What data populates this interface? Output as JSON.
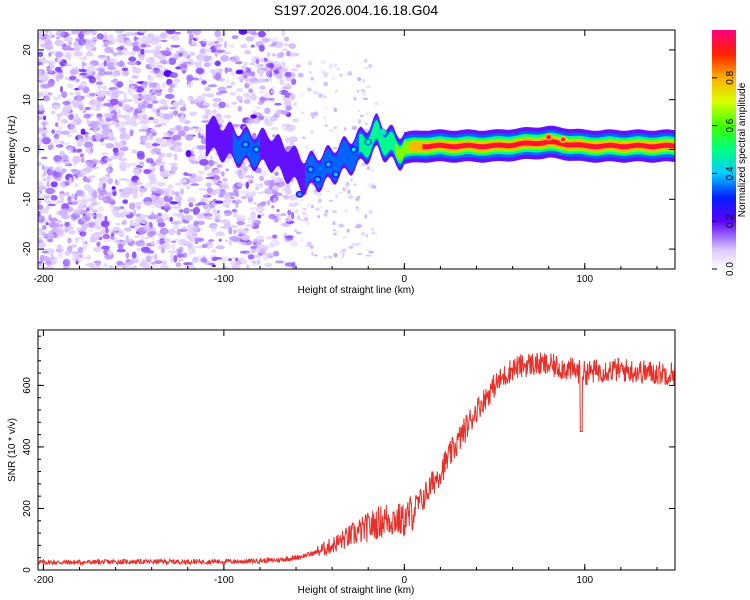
{
  "figure_title": "S197.2026.004.16.18.G04",
  "colors": {
    "snr_line": "#e8302a",
    "background_point": "#6a00ff",
    "frame": "#000000"
  },
  "chart_data": [
    {
      "type": "heatmap",
      "name": "spectrogram",
      "xlabel": "Height of straight line (km)",
      "ylabel": "Frequency (Hz)",
      "xlim": [
        -203,
        150
      ],
      "ylim": [
        -24,
        24
      ],
      "xticks": [
        -200,
        -100,
        0,
        100
      ],
      "yticks": [
        -20,
        -10,
        0,
        10,
        20
      ],
      "colorbar": {
        "label": "Normalized spectral amplitude",
        "range": [
          0,
          1
        ],
        "ticks": [
          0.0,
          0.2,
          0.4,
          0.6,
          0.8
        ]
      },
      "ridge": {
        "description": "dominant frequency ridge",
        "points": [
          {
            "x": -110,
            "y": 3,
            "amp": 0.2
          },
          {
            "x": -95,
            "y": 1,
            "amp": 0.3
          },
          {
            "x": -85,
            "y": 0,
            "amp": 0.35
          },
          {
            "x": -75,
            "y": 0,
            "amp": 0.25
          },
          {
            "x": -55,
            "y": -5,
            "amp": 0.3
          },
          {
            "x": -45,
            "y": -4,
            "amp": 0.35
          },
          {
            "x": -35,
            "y": -2,
            "amp": 0.35
          },
          {
            "x": -25,
            "y": 0,
            "amp": 0.45
          },
          {
            "x": -15,
            "y": 3,
            "amp": 0.5
          },
          {
            "x": -5,
            "y": 0,
            "amp": 0.6
          },
          {
            "x": 10,
            "y": 0.7,
            "amp": 0.9
          },
          {
            "x": 50,
            "y": 0.7,
            "amp": 0.95
          },
          {
            "x": 80,
            "y": 1.5,
            "amp": 0.95
          },
          {
            "x": 100,
            "y": 0.7,
            "amp": 0.95
          },
          {
            "x": 150,
            "y": 0.7,
            "amp": 0.95
          }
        ]
      }
    },
    {
      "type": "line",
      "name": "snr",
      "xlabel": "Height of straight line (km)",
      "ylabel": "SNR (10 * v/v)",
      "xlim": [
        -203,
        150
      ],
      "ylim": [
        0,
        780
      ],
      "xticks": [
        -200,
        -100,
        0,
        100
      ],
      "yticks": [
        0,
        200,
        400,
        600
      ],
      "series": [
        {
          "name": "SNR",
          "x": [
            -203,
            -180,
            -150,
            -120,
            -90,
            -70,
            -60,
            -50,
            -40,
            -30,
            -20,
            -10,
            -5,
            0,
            10,
            20,
            30,
            40,
            50,
            60,
            70,
            80,
            90,
            100,
            110,
            120,
            130,
            140,
            150
          ],
          "y": [
            25,
            25,
            27,
            27,
            28,
            32,
            40,
            55,
            80,
            110,
            140,
            165,
            165,
            160,
            230,
            320,
            420,
            520,
            600,
            655,
            670,
            665,
            655,
            640,
            650,
            650,
            645,
            640,
            640
          ]
        }
      ],
      "annotations": [
        {
          "x": 98,
          "y": 450,
          "note": "dip"
        }
      ]
    }
  ]
}
